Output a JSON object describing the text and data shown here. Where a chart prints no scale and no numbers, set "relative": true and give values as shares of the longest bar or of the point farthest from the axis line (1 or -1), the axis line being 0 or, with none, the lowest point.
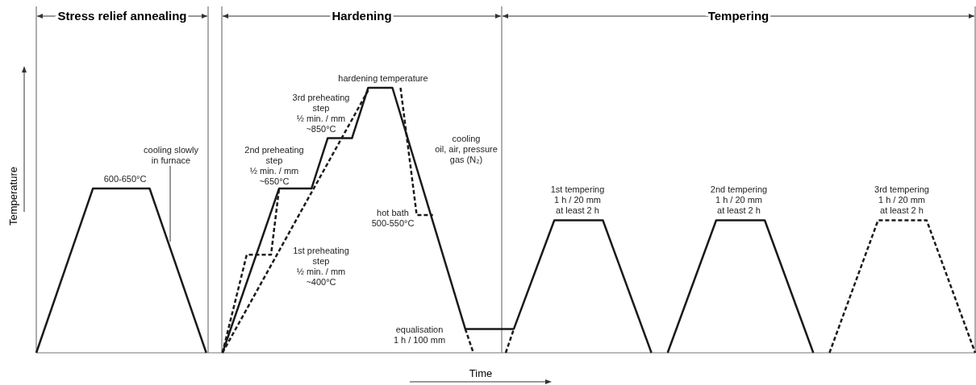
{
  "chart_data": {
    "type": "line",
    "relative": true,
    "xlabel": "Time",
    "ylabel": "Temperature",
    "categories": [
      null,
      null,
      null,
      null,
      null,
      null,
      null,
      null,
      null,
      null,
      null,
      null,
      null,
      null,
      null,
      null,
      null,
      null,
      null,
      null,
      null,
      null,
      null,
      null,
      null,
      null,
      null,
      null,
      null,
      null,
      null,
      null,
      null,
      null,
      null,
      null,
      null,
      null,
      null,
      null,
      null,
      null,
      null,
      null,
      null,
      null,
      null,
      null,
      null,
      null,
      null,
      null,
      null,
      null,
      null,
      null,
      null,
      null,
      null,
      null,
      null,
      null,
      null,
      null,
      null,
      null,
      null,
      null,
      null,
      null,
      null,
      null,
      null,
      null,
      null,
      null,
      null,
      null,
      null,
      null,
      null,
      null,
      null,
      null,
      null,
      null,
      null,
      null,
      null,
      null,
      null,
      null,
      null,
      null,
      null,
      null,
      null,
      null,
      null,
      null,
      null,
      null,
      null,
      null,
      null,
      null,
      null,
      null,
      null,
      null,
      null,
      null,
      null,
      null,
      null,
      null,
      null
    ],
    "series": [
      {
        "color": "#1a1a1a",
        "line_style": "solid",
        "values": [
          0,
          null,
          null,
          null,
          null,
          null,
          null,
          0.62,
          null,
          null,
          null,
          null,
          null,
          null,
          0.62,
          null,
          null,
          null,
          null,
          null,
          null,
          0,
          null,
          null,
          null,
          null,
          null,
          null,
          null,
          null,
          null,
          null,
          null,
          null,
          null,
          null,
          null,
          null,
          null,
          null,
          null,
          null,
          null,
          null,
          null,
          null,
          null,
          null,
          null,
          null,
          null,
          null,
          null,
          null,
          null,
          null,
          null,
          null,
          null,
          null,
          null,
          null,
          null,
          null,
          null,
          null,
          null,
          null,
          null,
          null,
          null,
          null,
          null,
          null,
          null,
          null,
          null,
          null,
          null,
          null,
          null,
          null,
          null,
          null,
          null,
          null,
          null,
          null,
          null,
          null,
          null,
          null,
          null,
          null,
          null,
          null,
          null,
          null,
          null,
          null,
          null,
          null,
          null,
          null,
          null,
          null,
          null,
          null,
          null,
          null,
          null,
          null,
          null,
          null,
          null,
          null,
          null
        ]
      },
      {
        "color": "#1a1a1a",
        "line_style": "solid",
        "values": [
          null,
          null,
          null,
          null,
          null,
          null,
          null,
          null,
          null,
          null,
          null,
          null,
          null,
          null,
          null,
          null,
          null,
          null,
          null,
          null,
          null,
          null,
          null,
          0,
          null,
          null,
          null,
          null,
          null,
          null,
          0.62,
          null,
          null,
          null,
          0.62,
          null,
          0.81,
          null,
          null,
          0.81,
          null,
          1,
          null,
          null,
          1,
          null,
          null,
          null,
          null,
          null,
          null,
          null,
          null,
          0.09,
          null,
          null,
          null,
          null,
          null,
          0.09,
          null,
          null,
          null,
          null,
          0.5,
          null,
          null,
          null,
          null,
          null,
          0.5,
          null,
          null,
          null,
          null,
          null,
          0,
          null,
          null,
          null,
          null,
          null,
          null,
          null,
          null,
          null,
          null,
          null,
          null,
          null,
          null,
          null,
          null,
          null,
          null,
          null,
          null,
          null,
          null,
          null,
          null,
          null,
          null,
          null,
          null,
          null,
          null,
          null,
          null,
          null,
          null,
          null,
          null,
          null,
          null,
          null,
          null
        ]
      },
      {
        "color": "#1a1a1a",
        "line_style": "solid",
        "values": [
          null,
          null,
          null,
          null,
          null,
          null,
          null,
          null,
          null,
          null,
          null,
          null,
          null,
          null,
          null,
          null,
          null,
          null,
          null,
          null,
          null,
          null,
          null,
          null,
          null,
          null,
          null,
          null,
          null,
          null,
          null,
          null,
          null,
          null,
          null,
          null,
          null,
          null,
          null,
          null,
          null,
          null,
          null,
          null,
          null,
          null,
          null,
          null,
          null,
          null,
          null,
          null,
          null,
          null,
          null,
          null,
          null,
          null,
          null,
          null,
          null,
          null,
          null,
          null,
          null,
          null,
          null,
          null,
          null,
          null,
          null,
          null,
          null,
          null,
          null,
          null,
          null,
          null,
          0,
          null,
          null,
          null,
          null,
          null,
          0.5,
          null,
          null,
          null,
          null,
          null,
          0.5,
          null,
          null,
          null,
          null,
          null,
          0,
          null,
          null,
          null,
          null,
          null,
          null,
          null,
          null,
          null,
          null,
          null,
          null,
          null,
          null,
          null,
          null,
          null,
          null,
          null,
          null
        ]
      },
      {
        "color": "#1a1a1a",
        "line_style": "dashed",
        "values": [
          null,
          null,
          null,
          null,
          null,
          null,
          null,
          null,
          null,
          null,
          null,
          null,
          null,
          null,
          null,
          null,
          null,
          null,
          null,
          null,
          null,
          null,
          null,
          0,
          null,
          null,
          0.37,
          null,
          null,
          0.37,
          0.62,
          null,
          null,
          null,
          null,
          null,
          null,
          null,
          null,
          null,
          null,
          null,
          null,
          null,
          null,
          null,
          null,
          null,
          null,
          null,
          null,
          null,
          null,
          null,
          null,
          null,
          null,
          null,
          null,
          null,
          null,
          null,
          null,
          null,
          null,
          null,
          null,
          null,
          null,
          null,
          null,
          null,
          null,
          null,
          null,
          null,
          null,
          null,
          null,
          null,
          null,
          null,
          null,
          null,
          null,
          null,
          null,
          null,
          null,
          null,
          null,
          null,
          null,
          null,
          null,
          null,
          null,
          null,
          null,
          null,
          null,
          null,
          null,
          null,
          null,
          null,
          null,
          null,
          null,
          null,
          null,
          null,
          null,
          null,
          null,
          null,
          null
        ]
      },
      {
        "color": "#1a1a1a",
        "line_style": "dashed",
        "values": [
          null,
          null,
          null,
          null,
          null,
          null,
          null,
          null,
          null,
          null,
          null,
          null,
          null,
          null,
          null,
          null,
          null,
          null,
          null,
          null,
          null,
          null,
          null,
          0,
          null,
          null,
          null,
          null,
          null,
          null,
          null,
          null,
          null,
          null,
          null,
          null,
          null,
          null,
          null,
          null,
          null,
          0.99,
          null,
          null,
          null,
          null,
          null,
          null,
          null,
          null,
          null,
          null,
          null,
          null,
          null,
          null,
          null,
          null,
          null,
          null,
          null,
          null,
          null,
          null,
          null,
          null,
          null,
          null,
          null,
          null,
          null,
          null,
          null,
          null,
          null,
          null,
          null,
          null,
          null,
          null,
          null,
          null,
          null,
          null,
          null,
          null,
          null,
          null,
          null,
          null,
          null,
          null,
          null,
          null,
          null,
          null,
          null,
          null,
          null,
          null,
          null,
          null,
          null,
          null,
          null,
          null,
          null,
          null,
          null,
          null,
          null,
          null,
          null,
          null,
          null,
          null,
          null
        ]
      },
      {
        "color": "#1a1a1a",
        "line_style": "dashed",
        "values": [
          null,
          null,
          null,
          null,
          null,
          null,
          null,
          null,
          null,
          null,
          null,
          null,
          null,
          null,
          null,
          null,
          null,
          null,
          null,
          null,
          null,
          null,
          null,
          null,
          null,
          null,
          null,
          null,
          null,
          null,
          null,
          null,
          null,
          null,
          null,
          null,
          null,
          null,
          null,
          null,
          null,
          null,
          null,
          null,
          null,
          1,
          null,
          0.52,
          null,
          0.52,
          null,
          null,
          null,
          null,
          null,
          null,
          null,
          null,
          null,
          null,
          null,
          null,
          null,
          null,
          null,
          null,
          null,
          null,
          null,
          null,
          null,
          null,
          null,
          null,
          null,
          null,
          null,
          null,
          null,
          null,
          null,
          null,
          null,
          null,
          null,
          null,
          null,
          null,
          null,
          null,
          null,
          null,
          null,
          null,
          null,
          null,
          null,
          null,
          null,
          null,
          null,
          null,
          null,
          null,
          null,
          null,
          null,
          null,
          null,
          null,
          null,
          null,
          null,
          null,
          null,
          null,
          null
        ]
      },
      {
        "color": "#1a1a1a",
        "line_style": "dashed",
        "values": [
          null,
          null,
          null,
          null,
          null,
          null,
          null,
          null,
          null,
          null,
          null,
          null,
          null,
          null,
          null,
          null,
          null,
          null,
          null,
          null,
          null,
          null,
          null,
          null,
          null,
          null,
          null,
          null,
          null,
          null,
          null,
          null,
          null,
          null,
          null,
          null,
          null,
          null,
          null,
          null,
          null,
          null,
          null,
          null,
          null,
          null,
          null,
          null,
          null,
          null,
          null,
          null,
          null,
          0.09,
          0,
          null,
          null,
          null,
          null,
          null,
          null,
          null,
          null,
          null,
          null,
          null,
          null,
          null,
          null,
          null,
          null,
          null,
          null,
          null,
          null,
          null,
          null,
          null,
          null,
          null,
          null,
          null,
          null,
          null,
          null,
          null,
          null,
          null,
          null,
          null,
          null,
          null,
          null,
          null,
          null,
          null,
          null,
          null,
          null,
          null,
          null,
          null,
          null,
          null,
          null,
          null,
          null,
          null,
          null,
          null,
          null,
          null,
          null,
          null,
          null,
          null,
          null
        ]
      },
      {
        "color": "#1a1a1a",
        "line_style": "dashed",
        "values": [
          null,
          null,
          null,
          null,
          null,
          null,
          null,
          null,
          null,
          null,
          null,
          null,
          null,
          null,
          null,
          null,
          null,
          null,
          null,
          null,
          null,
          null,
          null,
          null,
          null,
          null,
          null,
          null,
          null,
          null,
          null,
          null,
          null,
          null,
          null,
          null,
          null,
          null,
          null,
          null,
          null,
          null,
          null,
          null,
          null,
          null,
          null,
          null,
          null,
          null,
          null,
          null,
          null,
          null,
          null,
          null,
          null,
          null,
          0,
          0.09,
          null,
          null,
          null,
          null,
          null,
          null,
          null,
          null,
          null,
          null,
          null,
          null,
          null,
          null,
          null,
          null,
          null,
          null,
          null,
          null,
          null,
          null,
          null,
          null,
          null,
          null,
          null,
          null,
          null,
          null,
          null,
          null,
          null,
          null,
          null,
          null,
          null,
          null,
          null,
          null,
          null,
          null,
          null,
          null,
          null,
          null,
          null,
          null,
          null,
          null,
          null,
          null,
          null,
          null,
          null,
          null,
          null
        ]
      },
      {
        "color": "#1a1a1a",
        "line_style": "dashed",
        "values": [
          null,
          null,
          null,
          null,
          null,
          null,
          null,
          null,
          null,
          null,
          null,
          null,
          null,
          null,
          null,
          null,
          null,
          null,
          null,
          null,
          null,
          null,
          null,
          null,
          null,
          null,
          null,
          null,
          null,
          null,
          null,
          null,
          null,
          null,
          null,
          null,
          null,
          null,
          null,
          null,
          null,
          null,
          null,
          null,
          null,
          null,
          null,
          null,
          null,
          null,
          null,
          null,
          null,
          null,
          null,
          null,
          null,
          null,
          null,
          null,
          null,
          null,
          null,
          null,
          null,
          null,
          null,
          null,
          null,
          null,
          null,
          null,
          null,
          null,
          null,
          null,
          null,
          null,
          null,
          null,
          null,
          null,
          null,
          null,
          null,
          null,
          null,
          null,
          null,
          null,
          null,
          null,
          null,
          null,
          null,
          null,
          null,
          null,
          0,
          null,
          null,
          null,
          null,
          null,
          0.5,
          null,
          null,
          null,
          null,
          null,
          0.5,
          null,
          null,
          null,
          null,
          null,
          0
        ]
      }
    ],
    "annotations": [
      "Stress relief annealing",
      "Hardening",
      "Tempering",
      "600-650°C",
      "cooling slowly\nin furnace",
      "hardening temperature",
      "3rd preheating\nstep\n½ min. / mm\n~850°C",
      "2nd preheating\nstep\n½ min. / mm\n~650°C",
      "1st preheating\nstep\n½ min. / mm\n~400°C",
      "cooling\noil, air, pressure\ngas (N₂)",
      "hot bath\n500-550°C",
      "equalisation\n1 h / 100 mm",
      "1st tempering\n1 h / 20 mm\nat least 2 h",
      "2nd tempering\n1 h / 20 mm\nat least 2 h",
      "3rd tempering\n1 h / 20 mm\nat least 2 h"
    ]
  }
}
